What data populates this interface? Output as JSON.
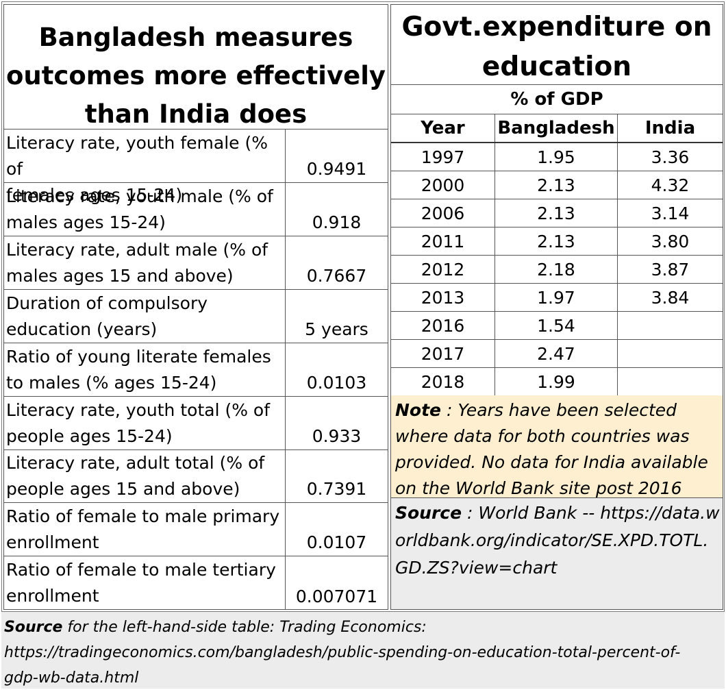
{
  "left_table": {
    "title": [
      "Bangladesh  measures",
      "outcomes more effectively",
      "than India does"
    ],
    "rows": [
      {
        "label": [
          "Literacy rate, youth female (% of",
          "females ages 15-24)"
        ],
        "value": "0.9491"
      },
      {
        "label": [
          "Literacy rate, youth male (% of",
          "males ages 15-24)"
        ],
        "value": "0.918"
      },
      {
        "label": [
          "Literacy rate, adult male (% of",
          "males ages 15 and above)"
        ],
        "value": "0.7667"
      },
      {
        "label": [
          "Duration of compulsory",
          "education (years)"
        ],
        "value": "5 years"
      },
      {
        "label": [
          "Ratio of young literate females",
          "to males (% ages 15-24)"
        ],
        "value": "0.0103"
      },
      {
        "label": [
          "Literacy rate, youth total (% of",
          "people ages 15-24)"
        ],
        "value": "0.933"
      },
      {
        "label": [
          "Literacy rate, adult total (% of",
          "people ages 15 and above)"
        ],
        "value": "0.7391"
      },
      {
        "label": [
          "Ratio of female to male primary",
          "enrollment"
        ],
        "value": "0.0107"
      },
      {
        "label": [
          "Ratio of female to male tertiary",
          "enrollment"
        ],
        "value": "0.007071"
      }
    ]
  },
  "right_table": {
    "title": [
      "Govt.expenditure on",
      "education"
    ],
    "unit": "% of GDP",
    "headers": [
      "Year",
      "Bangladesh",
      "India"
    ],
    "rows": [
      [
        "1997",
        "1.95",
        "3.36"
      ],
      [
        "2000",
        "2.13",
        "4.32"
      ],
      [
        "2006",
        "2.13",
        "3.14"
      ],
      [
        "2011",
        "2.13",
        "3.80"
      ],
      [
        "2012",
        "2.18",
        "3.87"
      ],
      [
        "2013",
        "1.97",
        "3.84"
      ],
      [
        "2016",
        "1.54",
        ""
      ],
      [
        "2017",
        "2.47",
        ""
      ],
      [
        "2018",
        "1.99",
        ""
      ]
    ],
    "note_label": "Note",
    "note_text": " : Years have been selected where data for both countries was provided.  No data for India available on the World Bank site post 2016",
    "source_label": "Source",
    "source_text": " : World Bank -- https://data.worldbank.org/indicator/SE.XPD.TOTL.GD.ZS?view=chart"
  },
  "bottom_source": {
    "label": "Source",
    "text": "  for the left-hand-side table:  Trading Economics:",
    "url_lines": [
      "https://tradingeconomics.com/bangladesh/public-spending-on-education-total-percent-of-",
      "gdp-wb-data.html"
    ]
  },
  "colors": {
    "note_background": "#fdefd0",
    "source_background": "#ececec",
    "border": "#555555"
  }
}
